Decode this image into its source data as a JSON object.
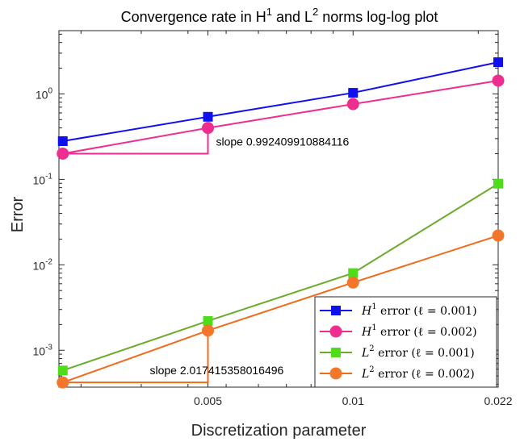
{
  "chart_data": {
    "type": "line",
    "xscale": "log",
    "yscale": "log",
    "title": {
      "part1": "Convergence rate in H",
      "sup1": "1",
      "part2": " and L",
      "sup2": "2",
      "part3": " norms log-log plot"
    },
    "xlabel": "Discretization parameter",
    "ylabel": "Error",
    "xlim": [
      0.0027,
      0.022
    ],
    "ylim": [
      0.00037,
      5.5
    ],
    "x_ticks": [
      {
        "value": 0.0055,
        "label": "0.005"
      },
      {
        "value": 0.011,
        "label": "0.01"
      },
      {
        "value": 0.022,
        "label": "0.022"
      }
    ],
    "y_ticks": [
      {
        "value": 0.001,
        "base": "10",
        "exp": "-3"
      },
      {
        "value": 0.01,
        "base": "10",
        "exp": "-2"
      },
      {
        "value": 0.1,
        "base": "10",
        "exp": "-1"
      },
      {
        "value": 1,
        "base": "10",
        "exp": "0"
      }
    ],
    "x": [
      0.00275,
      0.0055,
      0.011,
      0.022
    ],
    "series": [
      {
        "name": "H1 error (l=0.001)",
        "norm": "H",
        "sup": "1",
        "text": "error (ℓ = 0.001)",
        "color": "#1010ee",
        "marker": "square",
        "values": [
          0.28,
          0.54,
          1.03,
          2.35
        ]
      },
      {
        "name": "H1 error (l=0.002)",
        "norm": "H",
        "sup": "1",
        "text": "error (ℓ = 0.002)",
        "color": "#ee2d8f",
        "marker": "circle",
        "values": [
          0.2,
          0.4,
          0.76,
          1.43
        ]
      },
      {
        "name": "L2 error (l=0.001)",
        "norm": "L",
        "sup": "2",
        "text": "error (ℓ = 0.001)",
        "color": "#6aab2c",
        "markerColor": "#4fdc1a",
        "marker": "square",
        "values": [
          0.00058,
          0.0022,
          0.008,
          0.089
        ]
      },
      {
        "name": "L2 error (l=0.002)",
        "norm": "L",
        "sup": "2",
        "text": "error (ℓ = 0.002)",
        "color": "#f06a1a",
        "markerColor": "#f4762b",
        "marker": "circle",
        "values": [
          0.00042,
          0.0017,
          0.0062,
          0.022
        ]
      }
    ],
    "slope_triangles": [
      {
        "label": "slope 0.992409910884116",
        "color": "#ee2d8f",
        "x0": 0.00275,
        "x1": 0.0055,
        "y0": 0.2,
        "y1": 0.4
      },
      {
        "label": "slope 2.017415358016496",
        "color": "#f06a1a",
        "x0": 0.00275,
        "x1": 0.0055,
        "y0": 0.00042,
        "y1": 0.0017
      }
    ],
    "legend_position": "bottom-right"
  }
}
